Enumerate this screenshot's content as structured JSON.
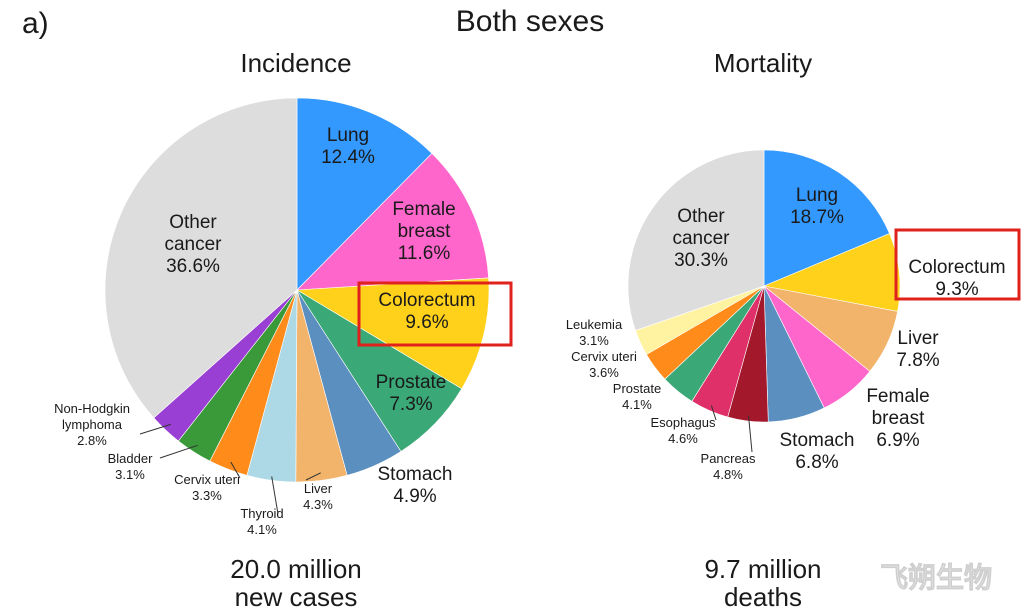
{
  "panel_label": "a)",
  "figure_title": "Both sexes",
  "watermark": "飞朔生物",
  "colors": {
    "lung": "#3399ff",
    "female_breast": "#ff66cc",
    "colorectum": "#ffd11a",
    "prostate": "#3aa877",
    "stomach": "#5b8fbf",
    "liver": "#f2b36b",
    "thyroid": "#add8e6",
    "cervix_uteri": "#ff8c1a",
    "bladder": "#3a9a3a",
    "non_hodgkin": "#9a3fd4",
    "other": "#dddddd",
    "leukemia": "#fff2a0",
    "esophagus": "#e0306a",
    "pancreas": "#a3182a",
    "highlight": "#e0221c"
  },
  "chart_data": [
    {
      "type": "pie",
      "title": "Incidence",
      "footer": [
        "20.0 million",
        "new cases"
      ],
      "highlight": "Colorectum",
      "slices": [
        {
          "name": "Lung",
          "value": 12.4,
          "label": "12.4%",
          "color_key": "lung"
        },
        {
          "name": "Female breast",
          "value": 11.6,
          "label": "11.6%",
          "color_key": "female_breast"
        },
        {
          "name": "Colorectum",
          "value": 9.6,
          "label": "9.6%",
          "color_key": "colorectum"
        },
        {
          "name": "Prostate",
          "value": 7.3,
          "label": "7.3%",
          "color_key": "prostate"
        },
        {
          "name": "Stomach",
          "value": 4.9,
          "label": "4.9%",
          "color_key": "stomach"
        },
        {
          "name": "Liver",
          "value": 4.3,
          "label": "4.3%",
          "color_key": "liver"
        },
        {
          "name": "Thyroid",
          "value": 4.1,
          "label": "4.1%",
          "color_key": "thyroid"
        },
        {
          "name": "Cervix uteri",
          "value": 3.3,
          "label": "3.3%",
          "color_key": "cervix_uteri"
        },
        {
          "name": "Bladder",
          "value": 3.1,
          "label": "3.1%",
          "color_key": "bladder"
        },
        {
          "name": "Non-Hodgkin lymphoma",
          "value": 2.8,
          "label": "2.8%",
          "color_key": "non_hodgkin"
        },
        {
          "name": "Other cancer",
          "value": 36.6,
          "label": "36.6%",
          "color_key": "other"
        }
      ]
    },
    {
      "type": "pie",
      "title": "Mortality",
      "footer": [
        "9.7 million",
        "deaths"
      ],
      "highlight": "Colorectum",
      "slices": [
        {
          "name": "Lung",
          "value": 18.7,
          "label": "18.7%",
          "color_key": "lung"
        },
        {
          "name": "Colorectum",
          "value": 9.3,
          "label": "9.3%",
          "color_key": "colorectum"
        },
        {
          "name": "Liver",
          "value": 7.8,
          "label": "7.8%",
          "color_key": "liver"
        },
        {
          "name": "Female breast",
          "value": 6.9,
          "label": "6.9%",
          "color_key": "female_breast"
        },
        {
          "name": "Stomach",
          "value": 6.8,
          "label": "6.8%",
          "color_key": "stomach"
        },
        {
          "name": "Pancreas",
          "value": 4.8,
          "label": "4.8%",
          "color_key": "pancreas"
        },
        {
          "name": "Esophagus",
          "value": 4.6,
          "label": "4.6%",
          "color_key": "esophagus"
        },
        {
          "name": "Prostate",
          "value": 4.1,
          "label": "4.1%",
          "color_key": "prostate"
        },
        {
          "name": "Cervix uteri",
          "value": 3.6,
          "label": "3.6%",
          "color_key": "cervix_uteri"
        },
        {
          "name": "Leukemia",
          "value": 3.1,
          "label": "3.1%",
          "color_key": "leukemia"
        },
        {
          "name": "Other cancer",
          "value": 30.3,
          "label": "30.3%",
          "color_key": "other"
        }
      ]
    }
  ]
}
